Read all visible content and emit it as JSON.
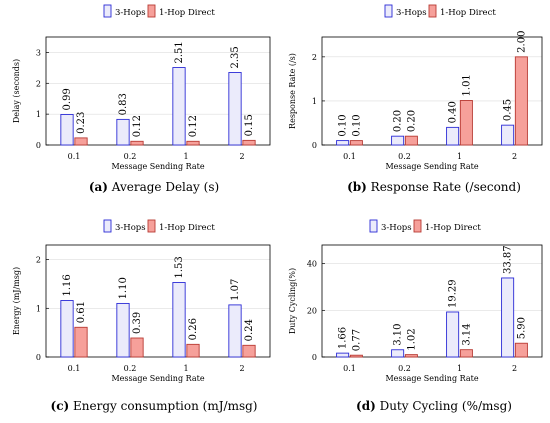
{
  "colors": {
    "hops3_fill": "#ebebfb",
    "hops3_stroke": "#2b2bd6",
    "direct_fill": "#f6a09a",
    "direct_stroke": "#b83a33",
    "axis": "#000000",
    "grid": "#dddddd"
  },
  "chart_data": [
    {
      "type": "bar",
      "caption_label": "(a)",
      "caption_text": "Average Delay (s)",
      "xlabel": "Message Sending Rate",
      "ylabel": "Delay (seconds)",
      "categories": [
        "0.1",
        "0.2",
        "1",
        "2"
      ],
      "ylim": [
        0,
        3.5
      ],
      "yticks": [
        "0",
        "1",
        "2",
        "3"
      ],
      "legend": "top",
      "grid": true,
      "series": [
        {
          "name": "3-Hops",
          "values": [
            0.99,
            0.83,
            2.51,
            2.35
          ],
          "labels": [
            "0.99",
            "0.83",
            "2.51",
            "2.35"
          ]
        },
        {
          "name": "1-Hop Direct",
          "values": [
            0.23,
            0.12,
            0.12,
            0.15
          ],
          "labels": [
            "0.23",
            "0.12",
            "0.12",
            "0.15"
          ]
        }
      ]
    },
    {
      "type": "bar",
      "caption_label": "(b)",
      "caption_text": "Response Rate (/second)",
      "xlabel": "Message Sending Rate",
      "ylabel": "Response Rate (/s)",
      "categories": [
        "0.1",
        "0.2",
        "1",
        "2"
      ],
      "ylim": [
        0,
        2.45
      ],
      "yticks": [
        "0",
        "1",
        "2"
      ],
      "legend": "top",
      "grid": true,
      "series": [
        {
          "name": "3-Hops",
          "values": [
            0.1,
            0.2,
            0.4,
            0.45
          ],
          "labels": [
            "0.10",
            "0.20",
            "0.40",
            "0.45"
          ]
        },
        {
          "name": "1-Hop Direct",
          "values": [
            0.1,
            0.2,
            1.01,
            2.0
          ],
          "labels": [
            "0.10",
            "0.20",
            "1.01",
            "2.00"
          ]
        }
      ]
    },
    {
      "type": "bar",
      "caption_label": "(c)",
      "caption_text": "Energy consumption (mJ/msg)",
      "xlabel": "Message Sending Rate",
      "ylabel": "Energy (mJ/msg)",
      "categories": [
        "0.1",
        "0.2",
        "1",
        "2"
      ],
      "ylim": [
        0,
        2.3
      ],
      "yticks": [
        "0",
        "1",
        "2"
      ],
      "legend": "top",
      "grid": true,
      "series": [
        {
          "name": "3-Hops",
          "values": [
            1.16,
            1.1,
            1.53,
            1.07
          ],
          "labels": [
            "1.16",
            "1.10",
            "1.53",
            "1.07"
          ]
        },
        {
          "name": "1-Hop Direct",
          "values": [
            0.61,
            0.39,
            0.26,
            0.24
          ],
          "labels": [
            "0.61",
            "0.39",
            "0.26",
            "0.24"
          ]
        }
      ]
    },
    {
      "type": "bar",
      "caption_label": "(d)",
      "caption_text": "Duty Cycling (%/msg)",
      "xlabel": "Message Sending Rate",
      "ylabel": "Duty Cycling(%)",
      "categories": [
        "0.1",
        "0.2",
        "1",
        "2"
      ],
      "ylim": [
        0,
        48
      ],
      "yticks": [
        "0",
        "20",
        "40"
      ],
      "legend": "top",
      "grid": true,
      "series": [
        {
          "name": "3-Hops",
          "values": [
            1.66,
            3.1,
            19.29,
            33.87
          ],
          "labels": [
            "1.66",
            "3.10",
            "19.29",
            "33.87"
          ]
        },
        {
          "name": "1-Hop Direct",
          "values": [
            0.77,
            1.02,
            3.14,
            5.9
          ],
          "labels": [
            "0.77",
            "1.02",
            "3.14",
            "5.90"
          ]
        }
      ]
    }
  ]
}
